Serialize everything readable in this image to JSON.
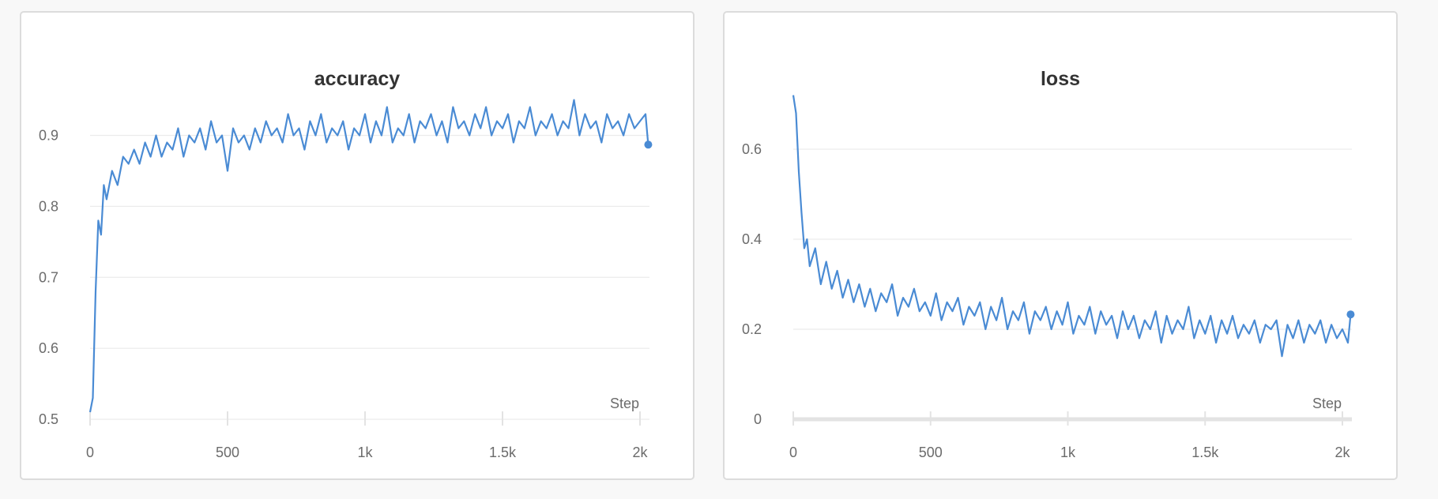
{
  "chart_data": [
    {
      "type": "line",
      "title": "accuracy",
      "xlabel": "Step",
      "ylabel": "",
      "xlim": [
        0,
        2030
      ],
      "ylim": [
        0.5,
        0.96
      ],
      "xticks": [
        0,
        500,
        1000,
        1500,
        2000
      ],
      "xtick_labels": [
        "0",
        "500",
        "1k",
        "1.5k",
        "2k"
      ],
      "yticks": [
        0.5,
        0.6,
        0.7,
        0.8,
        0.9
      ],
      "ytick_labels": [
        "0.5",
        "0.6",
        "0.7",
        "0.8",
        "0.9"
      ],
      "grid": true,
      "color": "#4a8bd4",
      "series": [
        {
          "name": "accuracy",
          "x": [
            0,
            10,
            20,
            30,
            40,
            50,
            60,
            80,
            100,
            120,
            140,
            160,
            180,
            200,
            220,
            240,
            260,
            280,
            300,
            320,
            340,
            360,
            380,
            400,
            420,
            440,
            460,
            480,
            500,
            520,
            540,
            560,
            580,
            600,
            620,
            640,
            660,
            680,
            700,
            720,
            740,
            760,
            780,
            800,
            820,
            840,
            860,
            880,
            900,
            920,
            940,
            960,
            980,
            1000,
            1020,
            1040,
            1060,
            1080,
            1100,
            1120,
            1140,
            1160,
            1180,
            1200,
            1220,
            1240,
            1260,
            1280,
            1300,
            1320,
            1340,
            1360,
            1380,
            1400,
            1420,
            1440,
            1460,
            1480,
            1500,
            1520,
            1540,
            1560,
            1580,
            1600,
            1620,
            1640,
            1660,
            1680,
            1700,
            1720,
            1740,
            1760,
            1780,
            1800,
            1820,
            1840,
            1860,
            1880,
            1900,
            1920,
            1940,
            1960,
            1980,
            2000,
            2020,
            2030
          ],
          "values": [
            0.51,
            0.53,
            0.68,
            0.78,
            0.76,
            0.83,
            0.81,
            0.85,
            0.83,
            0.87,
            0.86,
            0.88,
            0.86,
            0.89,
            0.87,
            0.9,
            0.87,
            0.89,
            0.88,
            0.91,
            0.87,
            0.9,
            0.89,
            0.91,
            0.88,
            0.92,
            0.89,
            0.9,
            0.85,
            0.91,
            0.89,
            0.9,
            0.88,
            0.91,
            0.89,
            0.92,
            0.9,
            0.91,
            0.89,
            0.93,
            0.9,
            0.91,
            0.88,
            0.92,
            0.9,
            0.93,
            0.89,
            0.91,
            0.9,
            0.92,
            0.88,
            0.91,
            0.9,
            0.93,
            0.89,
            0.92,
            0.9,
            0.94,
            0.89,
            0.91,
            0.9,
            0.93,
            0.89,
            0.92,
            0.91,
            0.93,
            0.9,
            0.92,
            0.89,
            0.94,
            0.91,
            0.92,
            0.9,
            0.93,
            0.91,
            0.94,
            0.9,
            0.92,
            0.91,
            0.93,
            0.89,
            0.92,
            0.91,
            0.94,
            0.9,
            0.92,
            0.91,
            0.93,
            0.9,
            0.92,
            0.91,
            0.95,
            0.9,
            0.93,
            0.91,
            0.92,
            0.89,
            0.93,
            0.91,
            0.92,
            0.9,
            0.93,
            0.91,
            0.92,
            0.93,
            0.887
          ]
        }
      ]
    },
    {
      "type": "line",
      "title": "loss",
      "xlabel": "Step",
      "ylabel": "",
      "xlim": [
        0,
        2030
      ],
      "ylim": [
        0,
        0.72
      ],
      "xticks": [
        0,
        500,
        1000,
        1500,
        2000
      ],
      "xtick_labels": [
        "0",
        "500",
        "1k",
        "1.5k",
        "2k"
      ],
      "yticks": [
        0,
        0.2,
        0.4,
        0.6
      ],
      "ytick_labels": [
        "0",
        "0.2",
        "0.4",
        "0.6"
      ],
      "grid": true,
      "color": "#4a8bd4",
      "series": [
        {
          "name": "loss",
          "x": [
            0,
            10,
            20,
            30,
            40,
            50,
            60,
            80,
            100,
            120,
            140,
            160,
            180,
            200,
            220,
            240,
            260,
            280,
            300,
            320,
            340,
            360,
            380,
            400,
            420,
            440,
            460,
            480,
            500,
            520,
            540,
            560,
            580,
            600,
            620,
            640,
            660,
            680,
            700,
            720,
            740,
            760,
            780,
            800,
            820,
            840,
            860,
            880,
            900,
            920,
            940,
            960,
            980,
            1000,
            1020,
            1040,
            1060,
            1080,
            1100,
            1120,
            1140,
            1160,
            1180,
            1200,
            1220,
            1240,
            1260,
            1280,
            1300,
            1320,
            1340,
            1360,
            1380,
            1400,
            1420,
            1440,
            1460,
            1480,
            1500,
            1520,
            1540,
            1560,
            1580,
            1600,
            1620,
            1640,
            1660,
            1680,
            1700,
            1720,
            1740,
            1760,
            1780,
            1800,
            1820,
            1840,
            1860,
            1880,
            1900,
            1920,
            1940,
            1960,
            1980,
            2000,
            2020,
            2030
          ],
          "values": [
            0.72,
            0.68,
            0.55,
            0.46,
            0.38,
            0.4,
            0.34,
            0.38,
            0.3,
            0.35,
            0.29,
            0.33,
            0.27,
            0.31,
            0.26,
            0.3,
            0.25,
            0.29,
            0.24,
            0.28,
            0.26,
            0.3,
            0.23,
            0.27,
            0.25,
            0.29,
            0.24,
            0.26,
            0.23,
            0.28,
            0.22,
            0.26,
            0.24,
            0.27,
            0.21,
            0.25,
            0.23,
            0.26,
            0.2,
            0.25,
            0.22,
            0.27,
            0.2,
            0.24,
            0.22,
            0.26,
            0.19,
            0.24,
            0.22,
            0.25,
            0.2,
            0.24,
            0.21,
            0.26,
            0.19,
            0.23,
            0.21,
            0.25,
            0.19,
            0.24,
            0.21,
            0.23,
            0.18,
            0.24,
            0.2,
            0.23,
            0.18,
            0.22,
            0.2,
            0.24,
            0.17,
            0.23,
            0.19,
            0.22,
            0.2,
            0.25,
            0.18,
            0.22,
            0.19,
            0.23,
            0.17,
            0.22,
            0.19,
            0.23,
            0.18,
            0.21,
            0.19,
            0.22,
            0.17,
            0.21,
            0.2,
            0.22,
            0.14,
            0.21,
            0.18,
            0.22,
            0.17,
            0.21,
            0.19,
            0.22,
            0.17,
            0.21,
            0.18,
            0.2,
            0.17,
            0.233
          ]
        }
      ]
    }
  ]
}
